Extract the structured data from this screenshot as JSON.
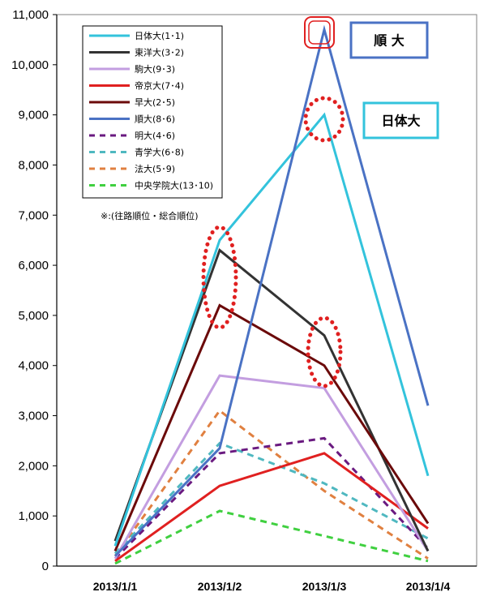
{
  "chart_data": {
    "type": "line",
    "categories": [
      "2013/1/1",
      "2013/1/2",
      "2013/1/3",
      "2013/1/4"
    ],
    "ylim": [
      0,
      11000
    ],
    "yticks": [
      0,
      1000,
      2000,
      3000,
      4000,
      5000,
      6000,
      7000,
      8000,
      9000,
      10000,
      11000
    ],
    "ytick_labels": [
      "0",
      "1,000",
      "2,000",
      "3,000",
      "4,000",
      "5,000",
      "6,000",
      "7,000",
      "8,000",
      "9,000",
      "10,000",
      "11,000"
    ],
    "grid": false,
    "legend_position": "top-left",
    "note": "※:(往路順位・総合順位)",
    "series": [
      {
        "name": "日体大(1･1)",
        "color": "#33c3dc",
        "dash": "solid",
        "values": [
          400,
          6500,
          9000,
          1800
        ]
      },
      {
        "name": "東洋大(3･2)",
        "color": "#333333",
        "dash": "solid",
        "values": [
          500,
          6300,
          4600,
          300
        ]
      },
      {
        "name": "駒大(9･3)",
        "color": "#c39ee0",
        "dash": "solid",
        "values": [
          150,
          3800,
          3550,
          300
        ]
      },
      {
        "name": "帝京大(7･4)",
        "color": "#e02020",
        "dash": "solid",
        "values": [
          100,
          1600,
          2250,
          750
        ]
      },
      {
        "name": "早大(2･5)",
        "color": "#6b0a0a",
        "dash": "solid",
        "values": [
          300,
          5200,
          4000,
          850
        ]
      },
      {
        "name": "順大(8･6)",
        "color": "#4a72c4",
        "dash": "solid",
        "values": [
          200,
          2350,
          10700,
          3200
        ]
      },
      {
        "name": "明大(4･6)",
        "color": "#6a1a80",
        "dash": "dashed",
        "values": [
          150,
          2250,
          2550,
          350
        ]
      },
      {
        "name": "青学大(6･8)",
        "color": "#4fb8c0",
        "dash": "dashed",
        "values": [
          250,
          2450,
          1650,
          550
        ]
      },
      {
        "name": "法大(5･9)",
        "color": "#e08040",
        "dash": "dashed",
        "values": [
          200,
          3100,
          1500,
          150
        ]
      },
      {
        "name": "中央学院大(13･10)",
        "color": "#40d040",
        "dash": "dashed",
        "values": [
          50,
          1100,
          600,
          100
        ]
      }
    ],
    "callouts": [
      {
        "text": "順 大",
        "border_color": "#4a72c4"
      },
      {
        "text": "日体大",
        "border_color": "#33c3dc"
      }
    ]
  }
}
